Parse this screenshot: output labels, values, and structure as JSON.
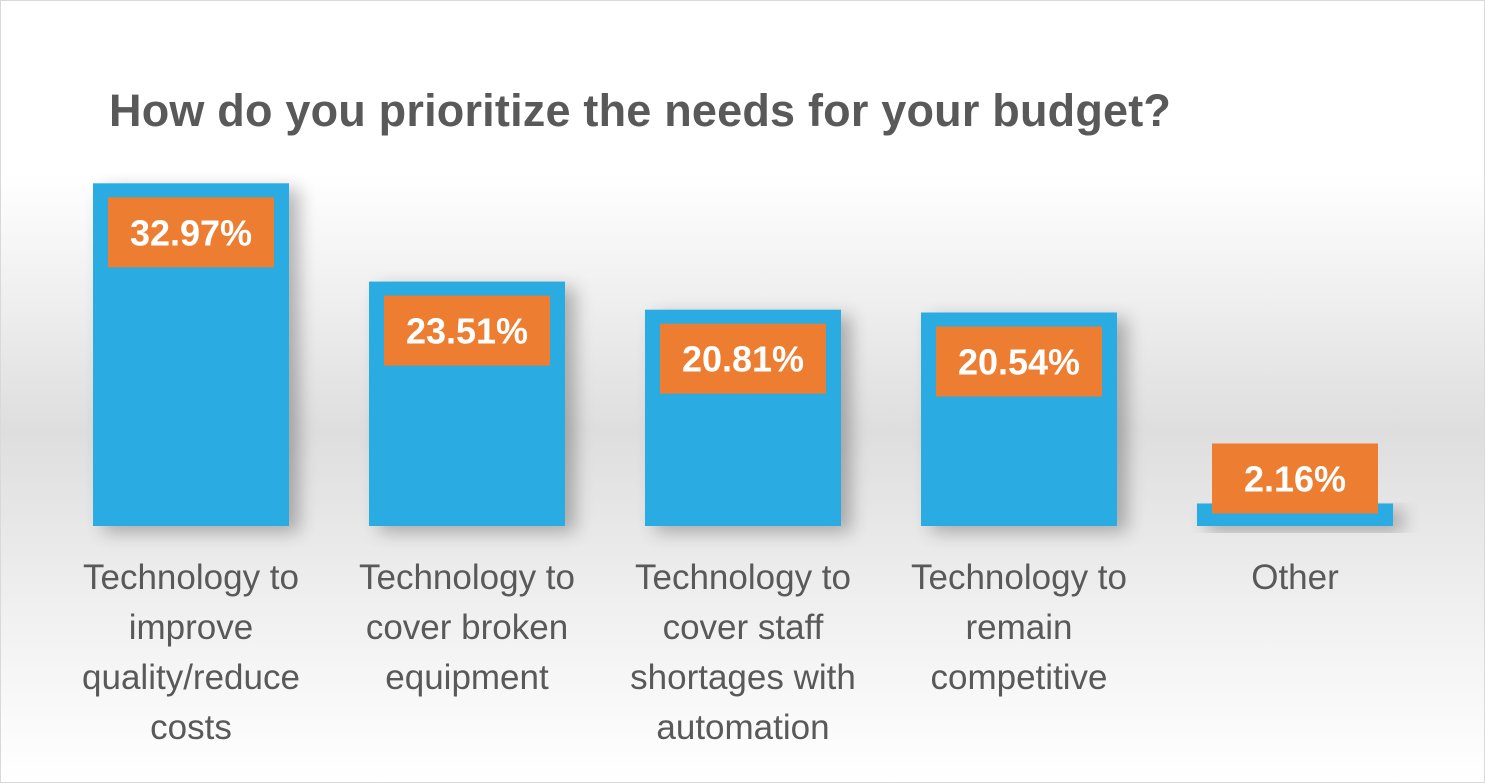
{
  "chart_data": {
    "type": "bar",
    "title": "How do you prioritize the needs for your budget?",
    "categories": [
      "Technology to improve quality/reduce costs",
      "Technology to cover broken equipment",
      "Technology to cover staff shortages with automation",
      "Technology to remain competitive",
      "Other"
    ],
    "values": [
      32.97,
      23.51,
      20.81,
      20.54,
      2.16
    ],
    "data_labels": [
      "32.97%",
      "23.51%",
      "20.81%",
      "20.54%",
      "2.16%"
    ],
    "ylim": [
      0,
      33
    ],
    "grid": false,
    "legend": "none",
    "colors": {
      "bar": "#29ABE2",
      "label_box": "#ED7D31",
      "label_text": "#FFFFFF",
      "text": "#595959"
    }
  }
}
